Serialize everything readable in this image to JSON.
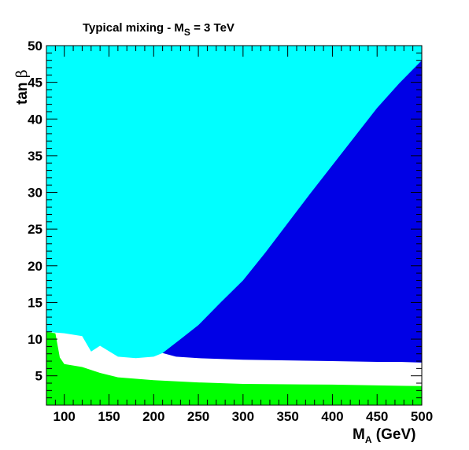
{
  "chart_data": {
    "type": "area",
    "title": {
      "prefix": "Typical mixing - M",
      "subscript": "S",
      "suffix": " = 3 TeV"
    },
    "xlabel": {
      "main": "M",
      "subscript": "A",
      "unit": " (GeV)"
    },
    "ylabel": {
      "main": "tan ",
      "symbol": "β"
    },
    "xlim": [
      80,
      500
    ],
    "ylim": [
      1,
      50
    ],
    "x_ticks": [
      100,
      150,
      200,
      250,
      300,
      350,
      400,
      450,
      500
    ],
    "y_ticks": [
      5,
      10,
      15,
      20,
      25,
      30,
      35,
      40,
      45,
      50
    ],
    "grid": false,
    "colors": {
      "cyan_region": "#00ffff",
      "blue_region": "#0000e6",
      "white_region": "#ffffff",
      "green_region": "#00ff00"
    },
    "regions": [
      {
        "color_key": "cyan_region",
        "boundary": [
          [
            80,
            1
          ],
          [
            80,
            50
          ],
          [
            500,
            50
          ],
          [
            500,
            1
          ]
        ]
      },
      {
        "color_key": "white_region",
        "boundary": [
          [
            80,
            11
          ],
          [
            100,
            10.8
          ],
          [
            120,
            10.4
          ],
          [
            130,
            8.3
          ],
          [
            140,
            9.1
          ],
          [
            160,
            7.6
          ],
          [
            180,
            7.4
          ],
          [
            200,
            7.6
          ],
          [
            210,
            8.1
          ],
          [
            300,
            7.5
          ],
          [
            400,
            7.2
          ],
          [
            500,
            7.0
          ],
          [
            500,
            1
          ],
          [
            80,
            1
          ]
        ]
      },
      {
        "color_key": "blue_region",
        "boundary": [
          [
            210,
            8.1
          ],
          [
            230,
            10.0
          ],
          [
            250,
            11.9
          ],
          [
            275,
            15.0
          ],
          [
            300,
            18.0
          ],
          [
            325,
            21.8
          ],
          [
            350,
            25.8
          ],
          [
            375,
            29.8
          ],
          [
            400,
            33.7
          ],
          [
            425,
            37.6
          ],
          [
            450,
            41.5
          ],
          [
            475,
            44.9
          ],
          [
            500,
            48.0
          ],
          [
            500,
            6.8
          ],
          [
            475,
            6.9
          ],
          [
            450,
            6.9
          ],
          [
            400,
            7.0
          ],
          [
            350,
            7.1
          ],
          [
            300,
            7.2
          ],
          [
            250,
            7.4
          ],
          [
            225,
            7.6
          ]
        ]
      },
      {
        "color_key": "green_region",
        "boundary": [
          [
            80,
            11
          ],
          [
            90,
            10.8
          ],
          [
            95,
            7.5
          ],
          [
            100,
            6.6
          ],
          [
            120,
            6.2
          ],
          [
            140,
            5.4
          ],
          [
            160,
            4.8
          ],
          [
            200,
            4.4
          ],
          [
            250,
            4.1
          ],
          [
            300,
            3.9
          ],
          [
            400,
            3.8
          ],
          [
            500,
            3.6
          ],
          [
            500,
            1
          ],
          [
            80,
            1
          ]
        ]
      }
    ]
  }
}
